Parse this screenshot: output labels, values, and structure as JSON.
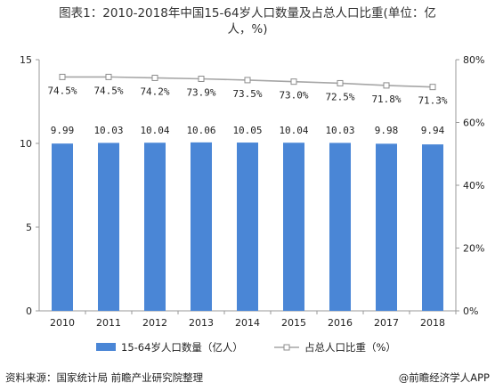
{
  "title_line1": "图表1：2010-2018年中国15-64岁人口数量及占总人口比重(单位：亿",
  "title_line2": "人，%)",
  "source": "资料来源：国家统计局 前瞻产业研究院整理",
  "brand": "@前瞻经济学人APP",
  "colors": {
    "bar": "#4a86d6",
    "line": "#a6a6a6",
    "axis": "#999999"
  },
  "chart_data": {
    "type": "bar",
    "categories": [
      "2010",
      "2011",
      "2012",
      "2013",
      "2014",
      "2015",
      "2016",
      "2017",
      "2018"
    ],
    "series": [
      {
        "name": "15-64岁人口数量（亿人）",
        "type": "bar",
        "axis": "left",
        "values": [
          9.99,
          10.03,
          10.04,
          10.06,
          10.05,
          10.04,
          10.03,
          9.98,
          9.94
        ],
        "labels": [
          "9.99",
          "10.03",
          "10.04",
          "10.06",
          "10.05",
          "10.04",
          "10.03",
          "9.98",
          "9.94"
        ]
      },
      {
        "name": "占总人口比重（%）",
        "type": "line",
        "axis": "right",
        "values": [
          74.5,
          74.5,
          74.2,
          73.9,
          73.5,
          73.0,
          72.5,
          71.8,
          71.3
        ],
        "labels": [
          "74.5%",
          "74.5%",
          "74.2%",
          "73.9%",
          "73.5%",
          "73.0%",
          "72.5%",
          "71.8%",
          "71.3%"
        ]
      }
    ],
    "y_left": {
      "ylim": [
        0,
        15
      ],
      "ticks": [
        "0",
        "5",
        "10",
        "15"
      ]
    },
    "y_right": {
      "ylim": [
        0,
        80
      ],
      "ticks": [
        "0%",
        "20%",
        "40%",
        "60%",
        "80%"
      ]
    },
    "legend_position": "bottom",
    "grid": false
  }
}
